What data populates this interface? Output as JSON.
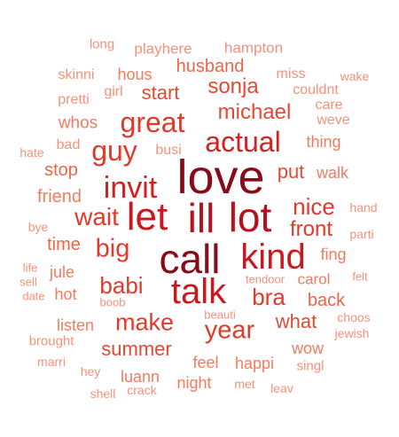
{
  "words": [
    {
      "text": "love",
      "color": "#8b0a1a"
    },
    {
      "text": "call",
      "color": "#8b0a1a"
    },
    {
      "text": "ill",
      "color": "#b3121e"
    },
    {
      "text": "lot",
      "color": "#b3121e"
    },
    {
      "text": "let",
      "color": "#c9181e"
    },
    {
      "text": "kind",
      "color": "#c9181e"
    },
    {
      "text": "talk",
      "color": "#c9181e"
    },
    {
      "text": "invit",
      "color": "#d32020"
    },
    {
      "text": "actual",
      "color": "#d32020"
    },
    {
      "text": "guy",
      "color": "#e03a2a"
    },
    {
      "text": "great",
      "color": "#e03a2a"
    },
    {
      "text": "big",
      "color": "#e03a2a"
    },
    {
      "text": "wait",
      "color": "#e03a2a"
    },
    {
      "text": "year",
      "color": "#e03a2a"
    },
    {
      "text": "make",
      "color": "#e03a2a"
    },
    {
      "text": "babi",
      "color": "#e03a2a"
    },
    {
      "text": "bra",
      "color": "#e03a2a"
    },
    {
      "text": "nice",
      "color": "#e03a2a"
    },
    {
      "text": "front",
      "color": "#e03a2a"
    },
    {
      "text": "michael",
      "color": "#e34a33"
    },
    {
      "text": "sonja",
      "color": "#e34a33"
    },
    {
      "text": "put",
      "color": "#e34a33"
    },
    {
      "text": "what",
      "color": "#e34a33"
    },
    {
      "text": "summer",
      "color": "#e34a33"
    },
    {
      "text": "start",
      "color": "#e34a33"
    },
    {
      "text": "husband",
      "color": "#ef6548"
    },
    {
      "text": "stop",
      "color": "#ef6548"
    },
    {
      "text": "time",
      "color": "#ef6548"
    },
    {
      "text": "back",
      "color": "#ef6548"
    },
    {
      "text": "friend",
      "color": "#f47b5e"
    },
    {
      "text": "whos",
      "color": "#f47b5e"
    },
    {
      "text": "jule",
      "color": "#f47b5e"
    },
    {
      "text": "hot",
      "color": "#f47b5e"
    },
    {
      "text": "listen",
      "color": "#f47b5e"
    },
    {
      "text": "fing",
      "color": "#f47b5e"
    },
    {
      "text": "carol",
      "color": "#f47b5e"
    },
    {
      "text": "happi",
      "color": "#f47b5e"
    },
    {
      "text": "feel",
      "color": "#f47b5e"
    },
    {
      "text": "wow",
      "color": "#f47b5e"
    },
    {
      "text": "walk",
      "color": "#f47b5e"
    },
    {
      "text": "thing",
      "color": "#f47b5e"
    },
    {
      "text": "hous",
      "color": "#f47b5e"
    },
    {
      "text": "luann",
      "color": "#f47b5e"
    },
    {
      "text": "night",
      "color": "#f47b5e"
    },
    {
      "text": "weve",
      "color": "#f5927a"
    },
    {
      "text": "girl",
      "color": "#f5927a"
    },
    {
      "text": "bad",
      "color": "#f5927a"
    },
    {
      "text": "busi",
      "color": "#f5927a"
    },
    {
      "text": "skinni",
      "color": "#f5927a"
    },
    {
      "text": "pretti",
      "color": "#f5927a"
    },
    {
      "text": "miss",
      "color": "#f5927a"
    },
    {
      "text": "couldnt",
      "color": "#f5927a"
    },
    {
      "text": "care",
      "color": "#f5927a"
    },
    {
      "text": "playhere",
      "color": "#f5927a"
    },
    {
      "text": "hampton",
      "color": "#f5927a"
    },
    {
      "text": "long",
      "color": "#f5927a"
    },
    {
      "text": "wake",
      "color": "#f5927a"
    },
    {
      "text": "hate",
      "color": "#f5927a"
    },
    {
      "text": "bye",
      "color": "#f5927a"
    },
    {
      "text": "hand",
      "color": "#f5927a"
    },
    {
      "text": "parti",
      "color": "#f5927a"
    },
    {
      "text": "life",
      "color": "#f5927a"
    },
    {
      "text": "sell",
      "color": "#f5927a"
    },
    {
      "text": "date",
      "color": "#f5927a"
    },
    {
      "text": "boob",
      "color": "#f5927a"
    },
    {
      "text": "tendoor",
      "color": "#f5927a"
    },
    {
      "text": "felt",
      "color": "#f5927a"
    },
    {
      "text": "beauti",
      "color": "#f5927a"
    },
    {
      "text": "choos",
      "color": "#f5927a"
    },
    {
      "text": "jewish",
      "color": "#f5927a"
    },
    {
      "text": "brought",
      "color": "#f5927a"
    },
    {
      "text": "marri",
      "color": "#f5927a"
    },
    {
      "text": "hey",
      "color": "#f5927a"
    },
    {
      "text": "singl",
      "color": "#f5927a"
    },
    {
      "text": "shell",
      "color": "#f5927a"
    },
    {
      "text": "crack",
      "color": "#f5927a"
    },
    {
      "text": "met",
      "color": "#f5927a"
    },
    {
      "text": "leav",
      "color": "#f5927a"
    }
  ]
}
